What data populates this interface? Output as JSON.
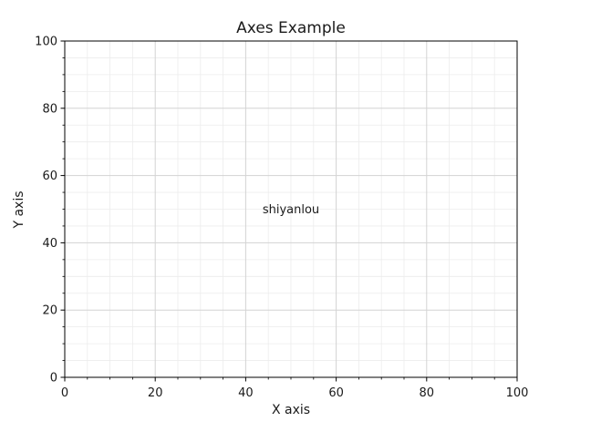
{
  "chart_data": {
    "type": "scatter",
    "title": "Axes Example",
    "xlabel": "X axis",
    "ylabel": "Y axis",
    "xlim": [
      0,
      100
    ],
    "ylim": [
      0,
      100
    ],
    "x_ticks": [
      0,
      20,
      40,
      60,
      80,
      100
    ],
    "y_ticks": [
      0,
      20,
      40,
      60,
      80,
      100
    ],
    "x_minor_step": 5,
    "y_minor_step": 5,
    "grid": {
      "major": true,
      "minor": true
    },
    "series": [],
    "annotations": [
      {
        "text": "shiyanlou",
        "x": 50,
        "y": 50
      }
    ],
    "colors": {
      "axis": "#000000",
      "major_grid": "#d3d3d3",
      "minor_grid": "#ececec",
      "text": "#1a1a1a"
    }
  }
}
